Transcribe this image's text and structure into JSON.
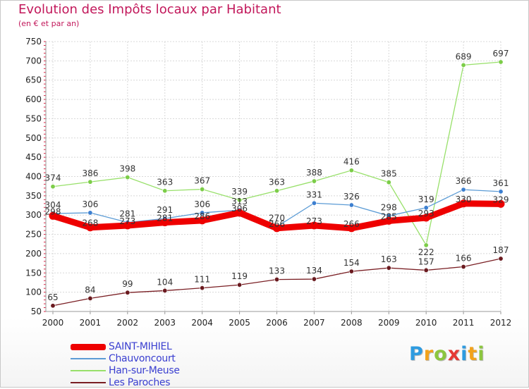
{
  "title": "Evolution des Impôts locaux par Habitant",
  "subtitle": "(en € et par an)",
  "logo_text": [
    "P",
    "r",
    "o",
    "x",
    "i",
    "t",
    "i"
  ],
  "logo_colors": [
    "#2e9be0",
    "#f2a21b",
    "#8cc63f",
    "#e53935",
    "#2e9be0",
    "#f2a21b",
    "#8cc63f"
  ],
  "chart_data": {
    "type": "line",
    "title": "Evolution des Impôts locaux par Habitant",
    "subtitle": "(en € et par an)",
    "xlabel": "",
    "ylabel": "",
    "x": [
      "2000",
      "2001",
      "2002",
      "2003",
      "2004",
      "2005",
      "2006",
      "2007",
      "2008",
      "2009",
      "2010",
      "2011",
      "2012"
    ],
    "ylim": [
      50,
      750
    ],
    "yticks": [
      50,
      100,
      150,
      200,
      250,
      300,
      350,
      400,
      450,
      500,
      550,
      600,
      650,
      700,
      750
    ],
    "grid": true,
    "legend_position": "bottom-left",
    "series": [
      {
        "name": "SAINT-MIHIEL",
        "color": "#ee0000",
        "values": [
          298,
          268,
          273,
          281,
          286,
          306,
          266,
          273,
          266,
          285,
          293,
          330,
          329
        ],
        "labels": false
      },
      {
        "name": "Chauvoncourt",
        "color": "#5b9bd5",
        "marker_fill": "#3c7fd0",
        "values": [
          304,
          306,
          281,
          291,
          306,
          313,
          270,
          331,
          326,
          298,
          319,
          366,
          361
        ],
        "labels": [
          304,
          306,
          281,
          291,
          306,
          313,
          270,
          331,
          326,
          298,
          319,
          366,
          361
        ]
      },
      {
        "name": "Han-sur-Meuse",
        "color": "#98e06a",
        "marker_fill": "#7ccd48",
        "values": [
          374,
          386,
          398,
          363,
          367,
          339,
          363,
          388,
          416,
          385,
          222,
          689,
          697
        ],
        "labels": [
          374,
          386,
          398,
          363,
          367,
          339,
          363,
          388,
          416,
          385,
          222,
          689,
          697
        ]
      },
      {
        "name": "Les Paroches",
        "color": "#7a1f24",
        "marker_fill": "#6a1a1f",
        "values": [
          65,
          84,
          99,
          104,
          111,
          119,
          133,
          134,
          154,
          163,
          157,
          166,
          187
        ],
        "labels": [
          65,
          84,
          99,
          104,
          111,
          119,
          133,
          134,
          154,
          163,
          157,
          166,
          187
        ]
      }
    ],
    "extra_value_labels": [
      {
        "x": "2000",
        "value": 298
      },
      {
        "x": "2001",
        "value": 268
      },
      {
        "x": "2002",
        "value": 273
      },
      {
        "x": "2003",
        "value": 281
      },
      {
        "x": "2004",
        "value": 286
      },
      {
        "x": "2005",
        "value": 306
      },
      {
        "x": "2006",
        "value": 266
      },
      {
        "x": "2007",
        "value": 273
      },
      {
        "x": "2008",
        "value": 266
      },
      {
        "x": "2009",
        "value": 285
      },
      {
        "x": "2010",
        "value": 293
      },
      {
        "x": "2011",
        "value": 330
      },
      {
        "x": "2012",
        "value": 329
      }
    ]
  }
}
